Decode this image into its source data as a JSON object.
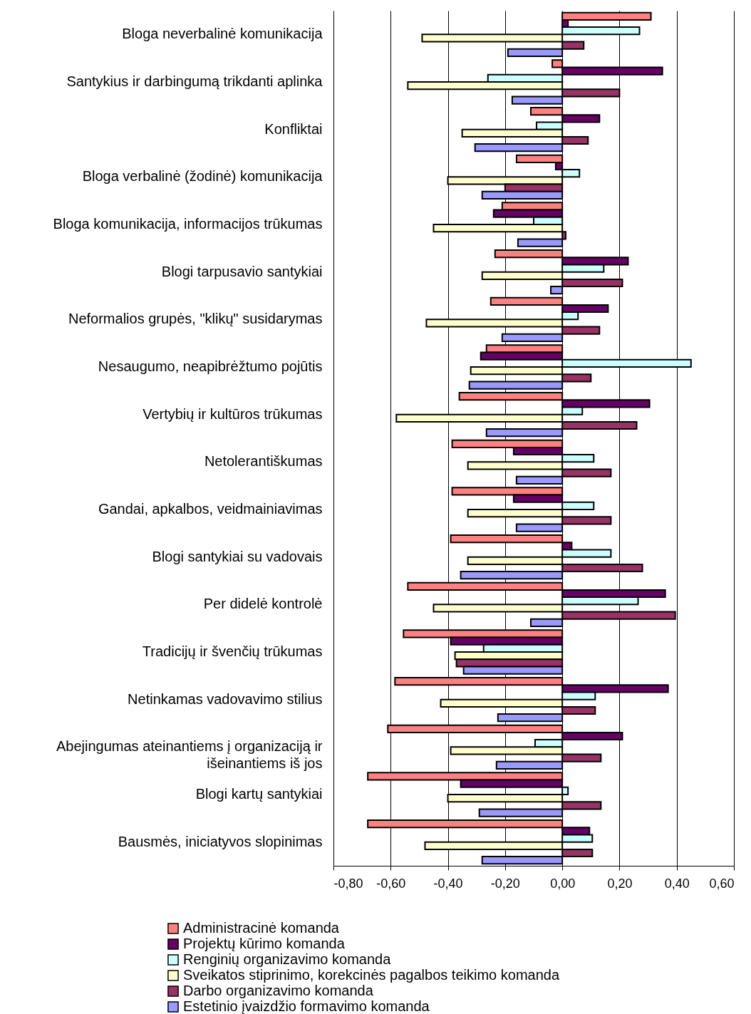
{
  "chart_data": {
    "type": "bar",
    "orientation": "horizontal",
    "categories": [
      "Bloga neverbalinė komunikacija",
      "Santykius ir darbingumą trikdanti aplinka",
      "Konfliktai",
      "Bloga verbalinė (žodinė) komunikacija",
      "Bloga komunikacija, informacijos trūkumas",
      "Blogi tarpusavio santykiai",
      "Neformalios grupės, \"klikų\" susidarymas",
      "Nesaugumo, neapibrėžtumo pojūtis",
      "Vertybių ir kultūros trūkumas",
      "Netolerantiškumas",
      "Gandai, apkalbos, veidmainiavimas",
      "Blogi santykiai su vadovais",
      "Per didelė kontrolė",
      "Tradicijų ir švenčių trūkumas",
      "Netinkamas vadovavimo stilius",
      "Abejingumas ateinantiems į organizaciją ir išeinantiems iš jos",
      "Blogi kartų santykiai",
      "Bausmės, iniciatyvos slopinimas"
    ],
    "series": [
      {
        "name": "Administracinė komanda",
        "color": "#ff8080",
        "values": [
          0.31,
          -0.035,
          -0.11,
          -0.16,
          -0.21,
          -0.235,
          -0.25,
          -0.265,
          -0.36,
          -0.385,
          -0.385,
          -0.39,
          -0.54,
          -0.555,
          -0.585,
          -0.61,
          -0.68,
          -0.68
        ]
      },
      {
        "name": "Projektų kūrimo komanda",
        "color": "#660066",
        "values": [
          0.02,
          0.35,
          0.13,
          -0.023,
          -0.24,
          0.23,
          0.16,
          -0.285,
          0.305,
          -0.17,
          -0.17,
          0.033,
          0.36,
          -0.39,
          0.37,
          0.21,
          -0.355,
          0.095
        ]
      },
      {
        "name": "Renginių organizavimo komanda",
        "color": "#ccffff",
        "values": [
          0.27,
          -0.26,
          -0.09,
          0.06,
          -0.1,
          0.145,
          0.055,
          0.45,
          0.07,
          0.11,
          0.11,
          0.17,
          0.265,
          -0.275,
          0.115,
          -0.095,
          0.02,
          0.105
        ]
      },
      {
        "name": "Sveikatos stiprinimo, korekcinės pagalbos teikimo komanda",
        "color": "#ffffcc",
        "values": [
          -0.49,
          -0.54,
          -0.35,
          -0.4,
          -0.45,
          -0.28,
          -0.475,
          -0.32,
          -0.58,
          -0.33,
          -0.33,
          -0.33,
          -0.45,
          -0.375,
          -0.425,
          -0.39,
          -0.4,
          -0.48
        ]
      },
      {
        "name": "Darbo organizavimo komanda",
        "color": "#993366",
        "values": [
          0.075,
          0.2,
          0.09,
          -0.2,
          0.012,
          0.21,
          0.13,
          0.1,
          0.26,
          0.17,
          0.17,
          0.28,
          0.395,
          -0.37,
          0.115,
          0.135,
          0.135,
          0.105
        ]
      },
      {
        "name": "Estetinio įvaizdžio formavimo komanda",
        "color": "#9999ff",
        "values": [
          -0.19,
          -0.175,
          -0.305,
          -0.28,
          -0.155,
          -0.04,
          -0.21,
          -0.325,
          -0.265,
          -0.16,
          -0.16,
          -0.355,
          -0.11,
          -0.345,
          -0.225,
          -0.23,
          -0.29,
          -0.28
        ]
      }
    ],
    "xlim": [
      -0.8,
      0.6
    ],
    "xticks": [
      {
        "value": -0.8,
        "label": "-0,80"
      },
      {
        "value": -0.6,
        "label": "-0,60"
      },
      {
        "value": -0.4,
        "label": "-0,40"
      },
      {
        "value": -0.2,
        "label": "-0,20"
      },
      {
        "value": 0,
        "label": "0,00"
      },
      {
        "value": 0.2,
        "label": "0,20"
      },
      {
        "value": 0.4,
        "label": "0,40"
      },
      {
        "value": 0.6,
        "label": "0,60"
      }
    ],
    "grid": "x",
    "legend": "bottom"
  }
}
